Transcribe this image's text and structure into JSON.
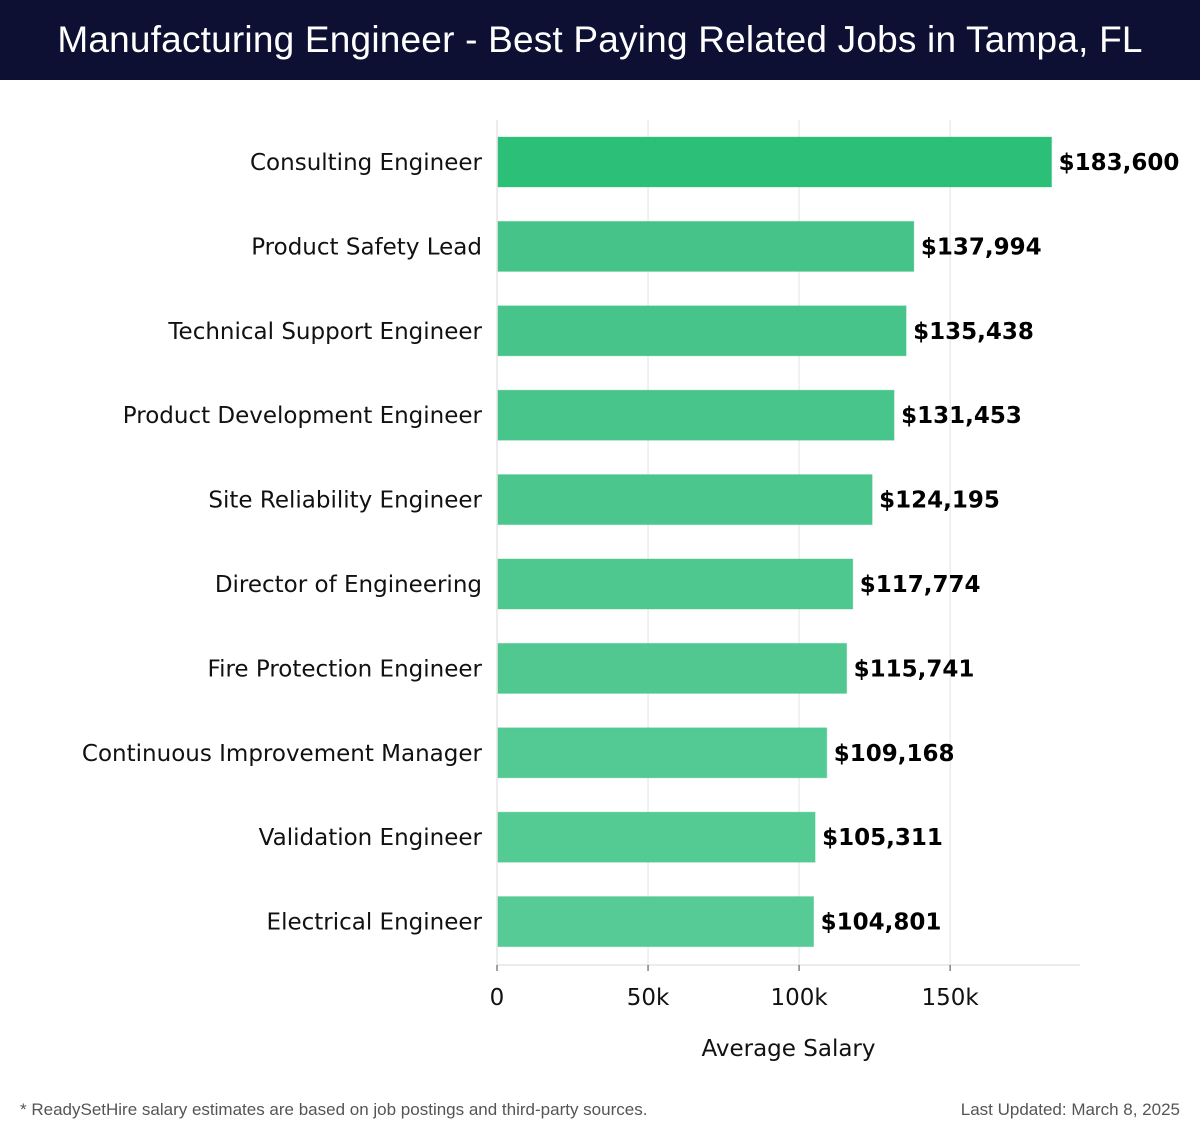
{
  "header": {
    "title": "Manufacturing Engineer - Best Paying Related Jobs in Tampa, FL"
  },
  "chart_data": {
    "type": "bar",
    "orientation": "horizontal",
    "title": "Manufacturing Engineer - Best Paying Related Jobs in Tampa, FL",
    "xlabel": "Average Salary",
    "ylabel": "",
    "xlim": [
      0,
      193000
    ],
    "xticks": [
      0,
      50000,
      100000,
      150000
    ],
    "xtick_labels": [
      "0",
      "50k",
      "100k",
      "150k"
    ],
    "grid": true,
    "categories": [
      "Consulting Engineer",
      "Product Safety Lead",
      "Technical Support Engineer",
      "Product Development Engineer",
      "Site Reliability Engineer",
      "Director of Engineering",
      "Fire Protection Engineer",
      "Continuous Improvement Manager",
      "Validation Engineer",
      "Electrical Engineer"
    ],
    "values": [
      183600,
      137994,
      135438,
      131453,
      124195,
      117774,
      115741,
      109168,
      105311,
      104801
    ],
    "value_labels": [
      "$183,600",
      "$137,994",
      "$135,438",
      "$131,453",
      "$124,195",
      "$117,774",
      "$115,741",
      "$109,168",
      "$105,311",
      "$104,801"
    ],
    "colors": {
      "top_bar": "#2bbf77",
      "bars": [
        "#2bbf77",
        "#45c389",
        "#47c48a",
        "#48c58b",
        "#4bc68d",
        "#4fc88f",
        "#50c890",
        "#53ca93",
        "#55cb94",
        "#56cb95"
      ],
      "grid": "#e3e3e3"
    }
  },
  "footer": {
    "note": "* ReadySetHire salary estimates are based on job postings and third-party sources.",
    "updated": "Last Updated: March 8, 2025"
  }
}
